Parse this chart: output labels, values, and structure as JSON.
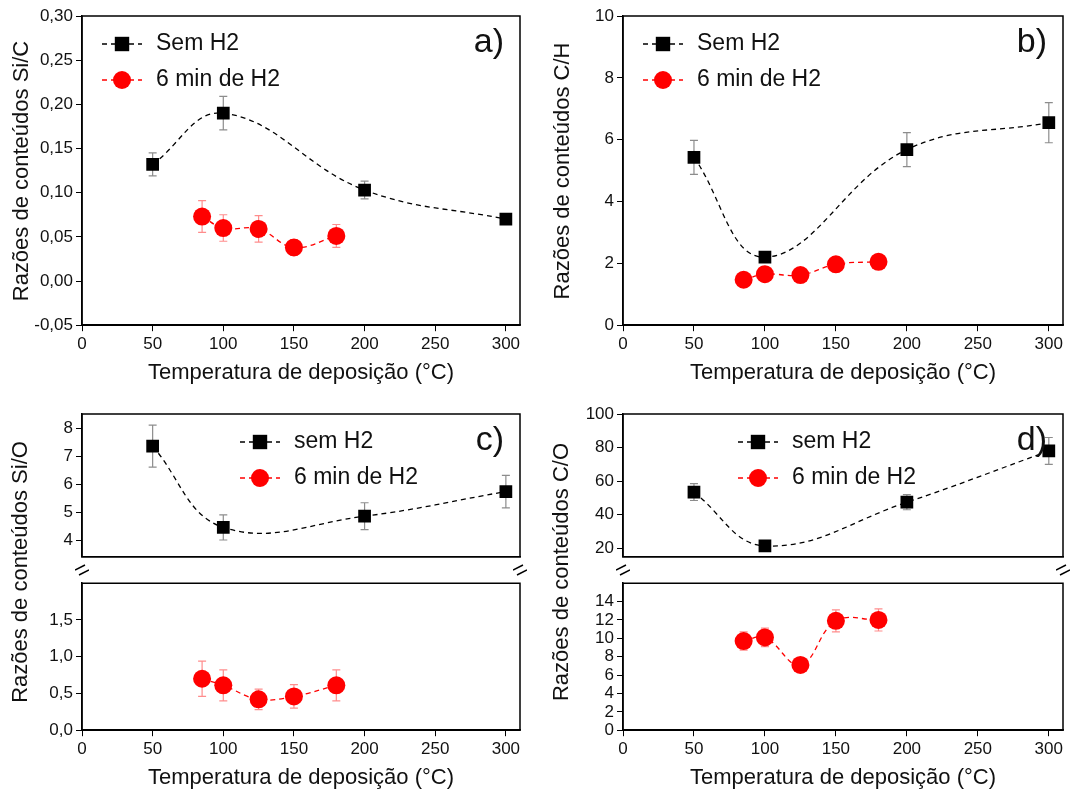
{
  "chart_data": [
    {
      "type": "line",
      "xlabel": "Temperatura de deposição (°C)",
      "ylabel": "Razões de conteúdos Si/C",
      "xlim": [
        0,
        310
      ],
      "xticks": [
        0,
        50,
        100,
        150,
        200,
        250,
        300
      ],
      "ylim": [
        -0.05,
        0.3
      ],
      "yticks": [
        {
          "value": -0.05,
          "label": "-0,05"
        },
        {
          "value": 0,
          "label": "0,00"
        },
        {
          "value": 0.05,
          "label": "0,05"
        },
        {
          "value": 0.1,
          "label": "0,10"
        },
        {
          "value": 0.15,
          "label": "0,15"
        },
        {
          "value": 0.2,
          "label": "0,20"
        },
        {
          "value": 0.25,
          "label": "0,25"
        },
        {
          "value": 0.3,
          "label": "0,30"
        }
      ],
      "legend": "top left",
      "annotations": [
        "a)"
      ],
      "series": [
        {
          "name": "Sem H2",
          "color": "#000000",
          "marker": "square",
          "line_style": "dashed",
          "x": [
            50,
            100,
            200,
            300
          ],
          "values": [
            0.132,
            0.19,
            0.103,
            0.07
          ],
          "errors": [
            0.013,
            0.019,
            0.01,
            null
          ]
        },
        {
          "name": "6 min de H2",
          "color": "#ff0000",
          "marker": "circle",
          "line_style": "dashed",
          "x": [
            85,
            100,
            125,
            150,
            180
          ],
          "values": [
            0.073,
            0.06,
            0.059,
            0.038,
            0.051
          ],
          "errors": [
            0.018,
            0.015,
            0.015,
            0.009,
            0.013
          ]
        }
      ]
    },
    {
      "type": "line",
      "xlabel": "Temperatura de deposição (°C)",
      "ylabel": "Razões de conteúdos C/H",
      "xlim": [
        0,
        310
      ],
      "xticks": [
        0,
        50,
        100,
        150,
        200,
        250,
        300
      ],
      "ylim": [
        0,
        10
      ],
      "yticks": [
        0,
        2,
        4,
        6,
        8,
        10
      ],
      "legend": "top left",
      "annotations": [
        "b)"
      ],
      "series": [
        {
          "name": "Sem H2",
          "color": "#000000",
          "marker": "square",
          "line_style": "dashed",
          "x": [
            50,
            100,
            200,
            300
          ],
          "values": [
            5.43,
            2.2,
            5.68,
            6.55
          ],
          "errors": [
            0.55,
            null,
            0.55,
            0.65
          ]
        },
        {
          "name": "6 min de H2",
          "color": "#ff0000",
          "marker": "circle",
          "line_style": "dashed",
          "x": [
            85,
            100,
            125,
            150,
            180
          ],
          "values": [
            1.47,
            1.65,
            1.62,
            1.97,
            2.05
          ]
        }
      ]
    },
    {
      "type": "line",
      "xlim": [
        0,
        310
      ],
      "ylim": [
        3.4,
        8.5
      ],
      "yticks": [
        4,
        5,
        6,
        7,
        8
      ],
      "tick_labels": "y",
      "legend": "top right",
      "annotations": [
        "c)"
      ],
      "series": [
        {
          "name": "sem H2",
          "color": "#000000",
          "marker": "square",
          "line_style": "dashed",
          "x": [
            50,
            100,
            200,
            300
          ],
          "values": [
            7.35,
            4.45,
            4.85,
            5.73
          ],
          "errors": [
            0.75,
            0.45,
            0.48,
            0.58
          ]
        }
      ]
    },
    {
      "type": "line",
      "xlabel": "Temperatura de deposição (°C)",
      "ylabel": "Razões de conteúdos Si/O",
      "xlim": [
        0,
        310
      ],
      "xticks": [
        0,
        50,
        100,
        150,
        200,
        250,
        300
      ],
      "ylim": [
        0,
        2
      ],
      "yticks": [
        {
          "value": 0,
          "label": "0,0"
        },
        {
          "value": 0.5,
          "label": "0,5"
        },
        {
          "value": 1,
          "label": "1,0"
        },
        {
          "value": 1.5,
          "label": "1,5"
        }
      ],
      "series": [
        {
          "name": "6 min de H2",
          "color": "#ff0000",
          "marker": "circle",
          "line_style": "dashed",
          "x": [
            85,
            100,
            125,
            150,
            180
          ],
          "values": [
            0.7,
            0.61,
            0.42,
            0.46,
            0.61
          ],
          "errors": [
            0.24,
            0.21,
            0.14,
            0.16,
            0.21
          ]
        }
      ]
    },
    {
      "type": "line",
      "xlim": [
        0,
        310
      ],
      "ylim": [
        15,
        100
      ],
      "yticks": [
        20,
        40,
        60,
        80,
        100
      ],
      "tick_labels": "y",
      "legend": "top",
      "annotations": [
        "d)"
      ],
      "series": [
        {
          "name": "sem H2",
          "color": "#000000",
          "marker": "square",
          "line_style": "dashed",
          "x": [
            50,
            100,
            200,
            300
          ],
          "values": [
            53.5,
            21.5,
            47.5,
            78
          ],
          "errors": [
            5,
            null,
            4.5,
            8
          ]
        }
      ]
    },
    {
      "type": "line",
      "xlabel": "Temperatura de deposição (°C)",
      "ylabel": "Razões de conteúdos C/O",
      "xlim": [
        0,
        310
      ],
      "xticks": [
        0,
        50,
        100,
        150,
        200,
        250,
        300
      ],
      "ylim": [
        0,
        16
      ],
      "yticks": [
        0,
        2,
        4,
        6,
        8,
        10,
        12,
        14
      ],
      "series": [
        {
          "name": "6 min de H2",
          "color": "#ff0000",
          "marker": "circle",
          "line_style": "dashed",
          "x": [
            85,
            100,
            125,
            150,
            180
          ],
          "values": [
            9.7,
            10.1,
            7.1,
            11.9,
            12.0
          ],
          "errors": [
            1,
            1,
            null,
            1.2,
            1.2
          ]
        }
      ]
    }
  ]
}
